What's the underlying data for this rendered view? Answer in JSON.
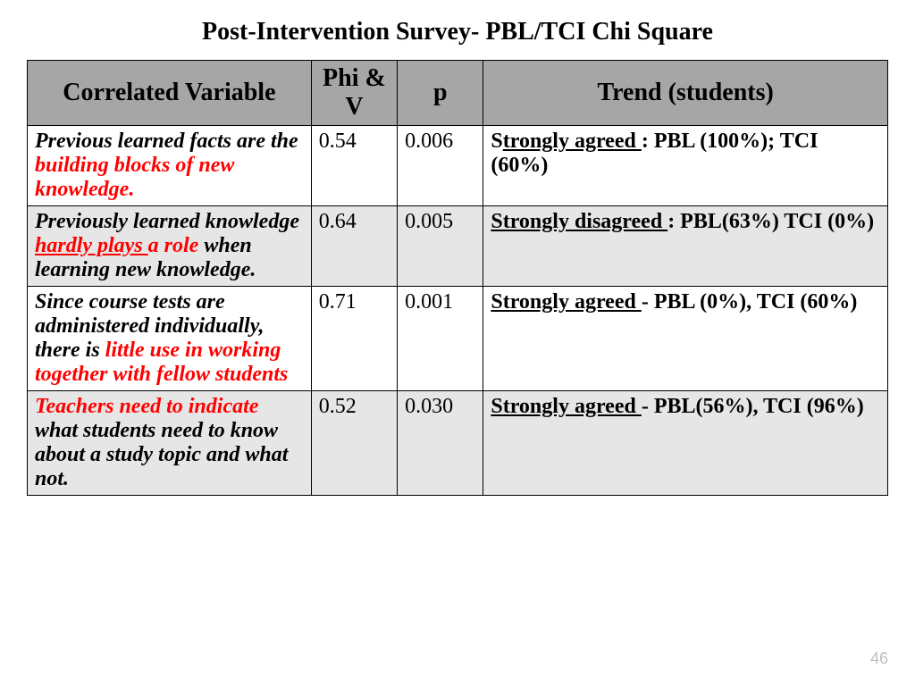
{
  "title": "Post-Intervention Survey- PBL/TCI Chi Square",
  "headers": {
    "variable": "Correlated Variable",
    "phi": "Phi & V",
    "p": "p",
    "trend": "Trend (students)"
  },
  "rows": [
    {
      "variable_plain_a": "Previous learned facts are the ",
      "variable_red_a": "building blocks  of new knowledge.",
      "variable_plain_b": "",
      "phi": "0.54",
      "p": "0.006",
      "trend_u": "Strongly agreed ",
      "trend_rest": ": PBL (100%); TCI (60%)",
      "trend_prefix": "S",
      "trend_u_override": "trongly agreed ",
      "row_shade": "odd"
    },
    {
      "variable_plain_a": "Previously learned knowledge ",
      "variable_red_a": "hardly plays ",
      "variable_red_a_underline": true,
      "variable_red_b": "a role",
      "variable_plain_b": " when learning new knowledge.",
      "phi": "0.64",
      "p": "0.005",
      "trend_u": " Strongly disagreed ",
      "trend_rest": ": PBL(63%) TCI (0%)",
      "row_shade": "even"
    },
    {
      "variable_plain_a": "Since course tests are administered individually, there is ",
      "variable_red_a": "little use in working together with fellow students",
      "variable_plain_b": "",
      "phi": "0.71",
      "p": "0.001",
      "trend_u": "Strongly agreed ",
      "trend_rest": "- PBL (0%),  TCI (60%)",
      "row_shade": "odd"
    },
    {
      "variable_red_lead": "Teachers  need to indicate",
      "variable_plain_a": " what students need to know about a study topic and what not.",
      "phi": "0.52",
      "p": "0.030",
      "trend_u": "Strongly agreed ",
      "trend_rest": "- PBL(56%), TCI (96%)",
      "row_shade": "even"
    }
  ],
  "page_number": "46",
  "style": {
    "header_bg": "#a6a6a6",
    "even_bg": "#e6e6e6",
    "border_color": "#000000",
    "text_color": "#000000",
    "highlight_color": "#ff0000",
    "title_fontsize": 28,
    "header_fontsize": 28,
    "cell_fontsize": 24,
    "font_family": "Times New Roman",
    "col_widths_pct": [
      33,
      10,
      10,
      47
    ]
  }
}
